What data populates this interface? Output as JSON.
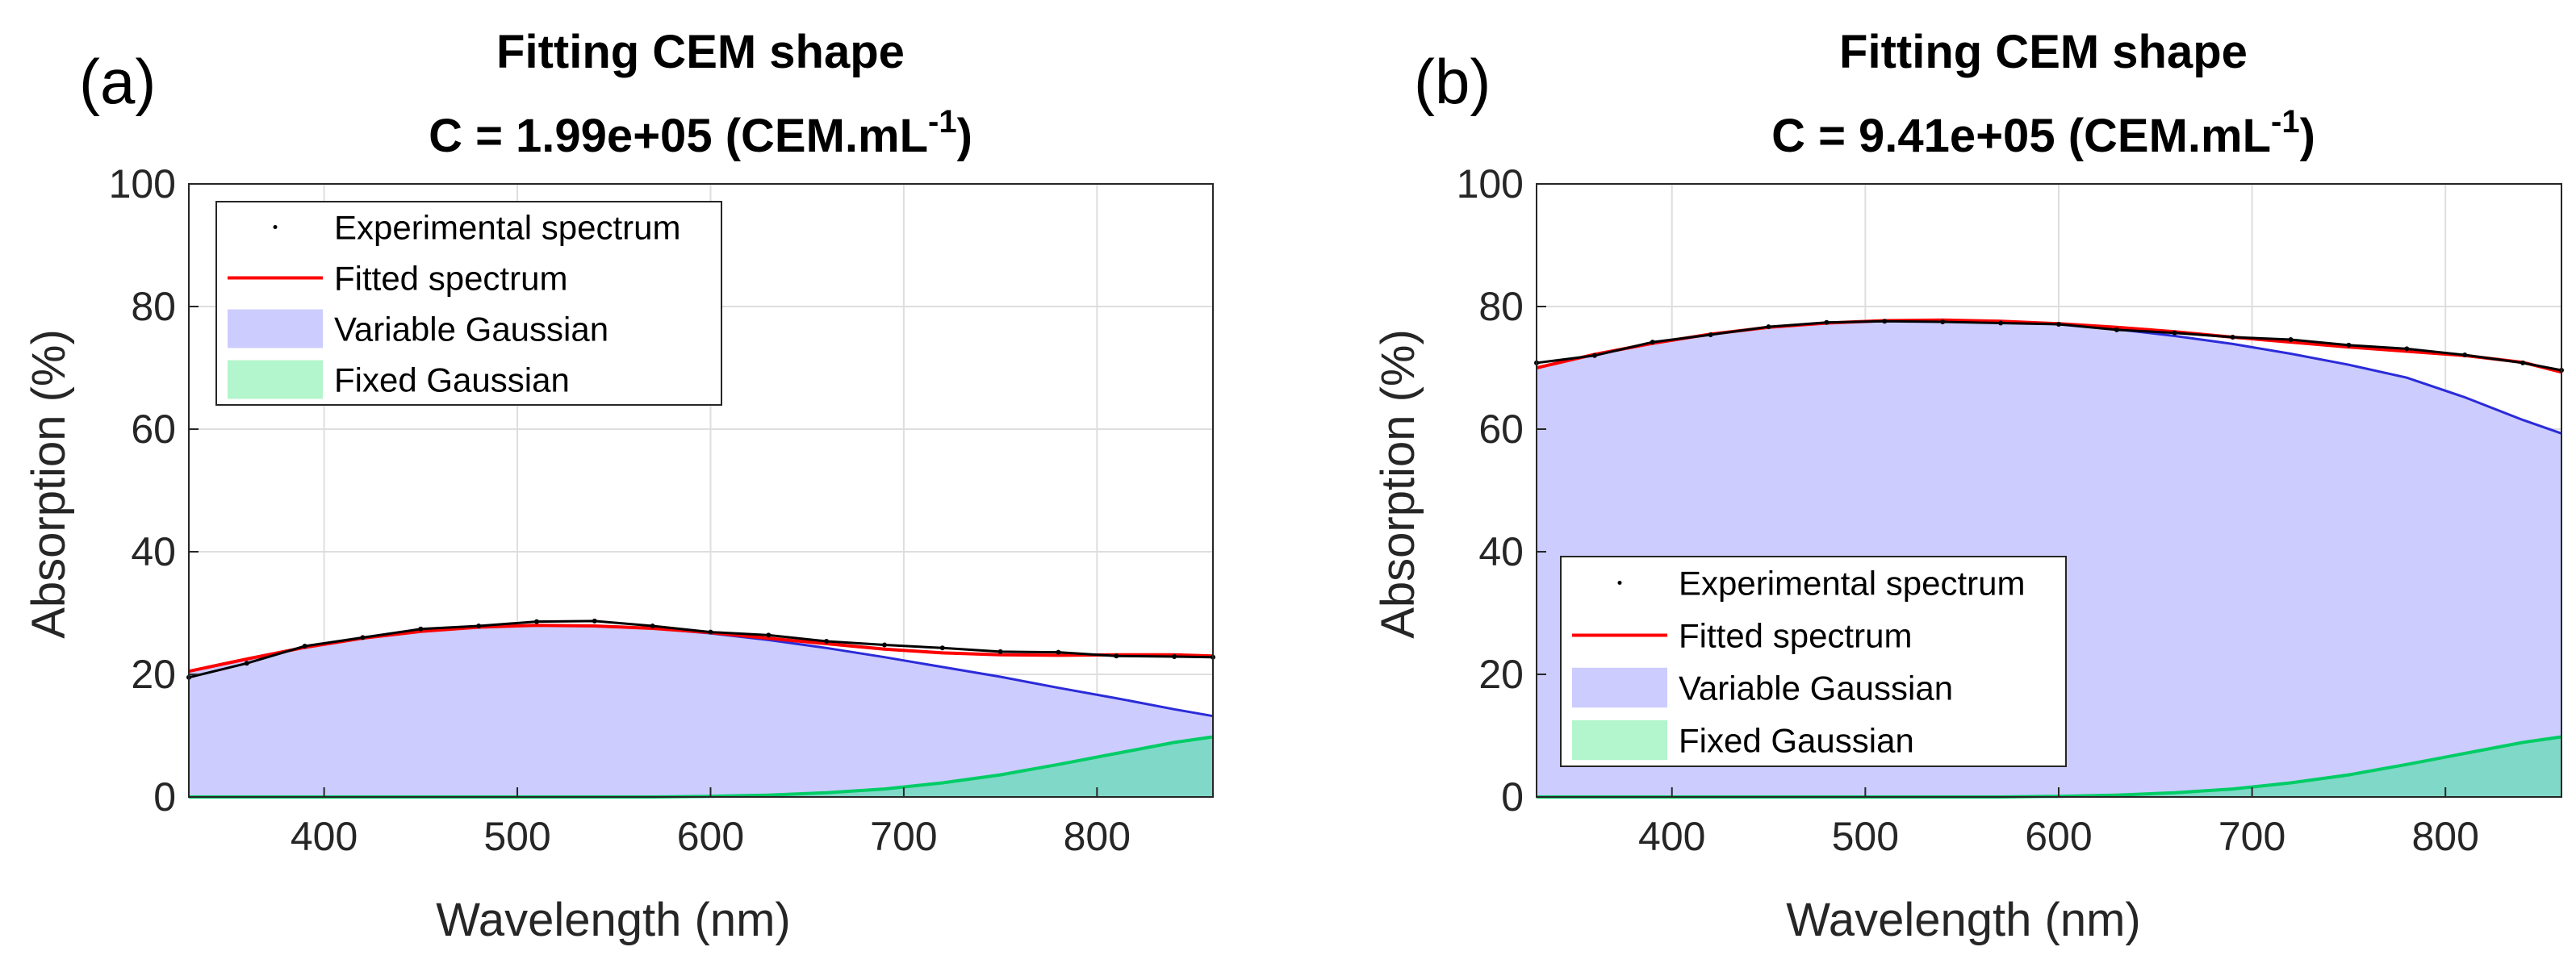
{
  "colors": {
    "experimental": "#000000",
    "fitted": "#ff0000",
    "variable_fill": "#ccccff",
    "variable_line": "#2b2bd9",
    "fixed_fill": "#80d8c8",
    "fixed_line": "#00cc66",
    "grid": "#dedede",
    "axis": "#262626"
  },
  "chart_data": [
    {
      "type": "area",
      "panel_label": "(a)",
      "title": "Fitting CEM shape",
      "subtitle_prefix": "C = 1.99e+05 (CEM.mL",
      "subtitle_sup": "-1",
      "subtitle_suffix": ")",
      "xlabel": "Wavelength (nm)",
      "ylabel": "Absorption (%)",
      "xlim": [
        330,
        860
      ],
      "ylim": [
        0,
        100
      ],
      "xticks": [
        400,
        500,
        600,
        700,
        800
      ],
      "yticks": [
        0,
        20,
        40,
        60,
        80,
        100
      ],
      "grid": true,
      "legend_position": "top-left",
      "legend": [
        "Experimental spectrum",
        "Fitted spectrum",
        "Variable Gaussian",
        "Fixed Gaussian"
      ],
      "x": [
        330,
        360,
        390,
        420,
        450,
        480,
        510,
        540,
        570,
        600,
        630,
        660,
        690,
        720,
        750,
        780,
        810,
        840,
        860
      ],
      "variable_gaussian": [
        20.5,
        22.5,
        24.4,
        25.9,
        27.0,
        27.7,
        28.0,
        27.9,
        27.5,
        26.7,
        25.6,
        24.3,
        22.8,
        21.2,
        19.6,
        17.8,
        16.1,
        14.3,
        13.2
      ],
      "fixed_gaussian": [
        0,
        0,
        0,
        0,
        0,
        0,
        0,
        0,
        0,
        0.1,
        0.3,
        0.7,
        1.3,
        2.3,
        3.6,
        5.3,
        7.1,
        8.9,
        9.8
      ],
      "fitted_spectrum": [
        20.5,
        22.5,
        24.4,
        25.9,
        27.0,
        27.7,
        28.0,
        27.9,
        27.5,
        26.8,
        25.9,
        25.0,
        24.1,
        23.5,
        23.2,
        23.1,
        23.2,
        23.2,
        23.0
      ],
      "experimental_spectrum": [
        19.5,
        21.8,
        24.6,
        26.0,
        27.4,
        27.9,
        28.6,
        28.7,
        27.9,
        26.9,
        26.4,
        25.4,
        24.8,
        24.3,
        23.7,
        23.6,
        23.0,
        22.9,
        22.8
      ]
    },
    {
      "type": "area",
      "panel_label": "(b)",
      "title": "Fitting CEM shape",
      "subtitle_prefix": "C = 9.41e+05 (CEM.mL",
      "subtitle_sup": "-1",
      "subtitle_suffix": ")",
      "xlabel": "Wavelength (nm)",
      "ylabel": "Absorption (%)",
      "xlim": [
        330,
        860
      ],
      "ylim": [
        0,
        100
      ],
      "xticks": [
        400,
        500,
        600,
        700,
        800
      ],
      "yticks": [
        0,
        20,
        40,
        60,
        80,
        100
      ],
      "grid": true,
      "legend_position": "bottom-left",
      "legend": [
        "Experimental spectrum",
        "Fitted spectrum",
        "Variable Gaussian",
        "Fixed Gaussian"
      ],
      "x": [
        330,
        360,
        390,
        420,
        450,
        480,
        510,
        540,
        570,
        600,
        630,
        660,
        690,
        720,
        750,
        780,
        810,
        840,
        860
      ],
      "variable_gaussian": [
        70.0,
        72.2,
        74.0,
        75.5,
        76.6,
        77.3,
        77.7,
        77.8,
        77.6,
        77.1,
        76.3,
        75.2,
        73.9,
        72.3,
        70.5,
        68.4,
        65.2,
        61.5,
        59.3
      ],
      "fixed_gaussian": [
        0,
        0,
        0,
        0,
        0,
        0,
        0,
        0,
        0,
        0.1,
        0.3,
        0.7,
        1.3,
        2.3,
        3.6,
        5.3,
        7.1,
        8.9,
        9.8
      ],
      "fitted_spectrum": [
        70.0,
        72.2,
        74.0,
        75.5,
        76.6,
        77.3,
        77.7,
        77.8,
        77.6,
        77.2,
        76.6,
        75.9,
        75.0,
        74.2,
        73.4,
        72.7,
        72.0,
        70.9,
        69.3
      ],
      "experimental_spectrum": [
        70.8,
        72.0,
        74.2,
        75.4,
        76.7,
        77.4,
        77.6,
        77.5,
        77.3,
        77.1,
        76.2,
        75.7,
        75.0,
        74.6,
        73.7,
        73.1,
        72.1,
        70.8,
        69.6
      ]
    }
  ]
}
